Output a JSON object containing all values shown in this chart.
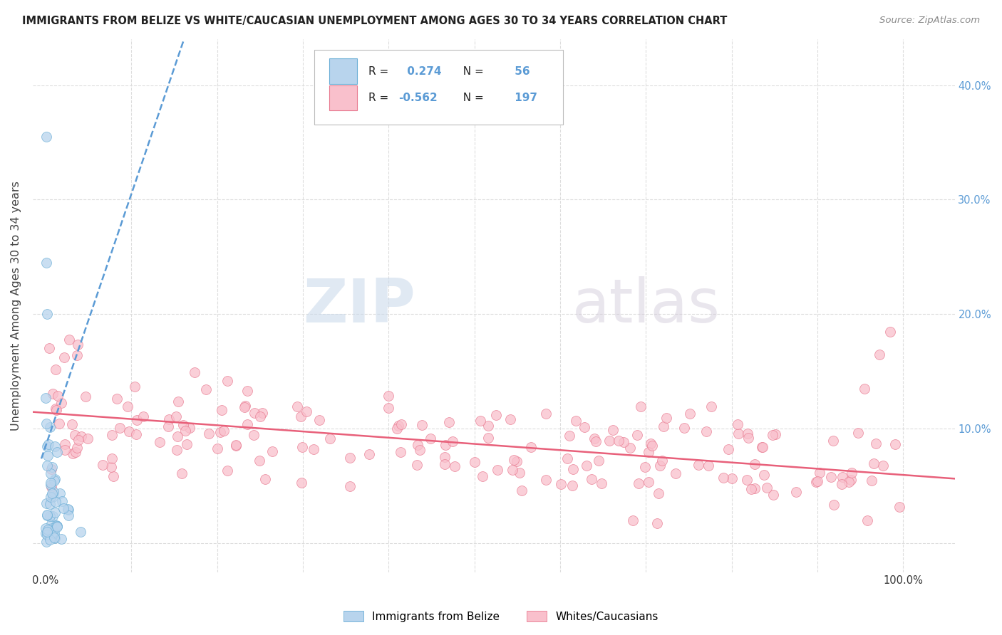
{
  "title": "IMMIGRANTS FROM BELIZE VS WHITE/CAUCASIAN UNEMPLOYMENT AMONG AGES 30 TO 34 YEARS CORRELATION CHART",
  "source": "Source: ZipAtlas.com",
  "ylabel": "Unemployment Among Ages 30 to 34 years",
  "ylabel_ticks": [
    0.0,
    0.1,
    0.2,
    0.3,
    0.4
  ],
  "ylabel_labels_left": [
    "",
    "",
    "",
    "",
    ""
  ],
  "ylabel_labels_right": [
    "",
    "10.0%",
    "20.0%",
    "30.0%",
    "40.0%"
  ],
  "xlabel_ticks": [
    0.0,
    0.1,
    0.2,
    0.3,
    0.4,
    0.5,
    0.6,
    0.7,
    0.8,
    0.9,
    1.0
  ],
  "xlim": [
    -0.015,
    1.06
  ],
  "ylim": [
    -0.025,
    0.44
  ],
  "blue_R": 0.274,
  "blue_N": 56,
  "pink_R": -0.562,
  "pink_N": 197,
  "blue_scatter_fill": "#b8d4ed",
  "blue_scatter_edge": "#6aaed6",
  "pink_scatter_fill": "#f9c0cc",
  "pink_scatter_edge": "#e87a90",
  "trend_blue_color": "#5b9bd5",
  "trend_pink_color": "#e8607a",
  "watermark_zip": "ZIP",
  "watermark_atlas": "atlas",
  "legend_labels": [
    "Immigrants from Belize",
    "Whites/Caucasians"
  ],
  "background_color": "#ffffff",
  "grid_color": "#dddddd",
  "title_color": "#222222",
  "source_color": "#888888",
  "axis_label_color": "#444444",
  "tick_color": "#5b9bd5"
}
